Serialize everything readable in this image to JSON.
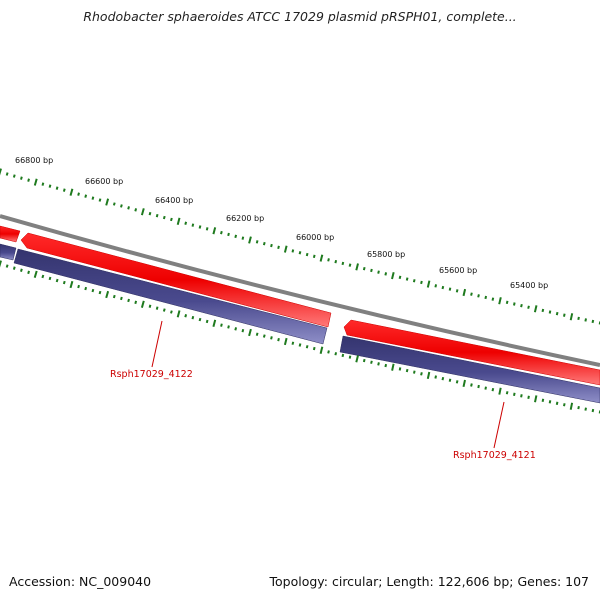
{
  "title": "Rhodobacter sphaeroides ATCC 17029 plasmid pRSPH01, complete...",
  "accession": "Accession: NC_009040",
  "summary": "Topology: circular; Length: 122,606 bp; Genes: 107",
  "bp_labels": [
    "66800 bp",
    "66600 bp",
    "66400 bp",
    "66200 bp",
    "66000 bp",
    "65800 bp",
    "65600 bp",
    "65400 bp"
  ],
  "genes": [
    "Rsph17029_4122",
    "Rsph17029_4121"
  ],
  "colors": {
    "backbone": "#808080",
    "forward_feature": "#ff0000",
    "cds_feature": "#4b4b8f",
    "ticks": "#1e7a1e",
    "gene_label": "#cc0000"
  }
}
